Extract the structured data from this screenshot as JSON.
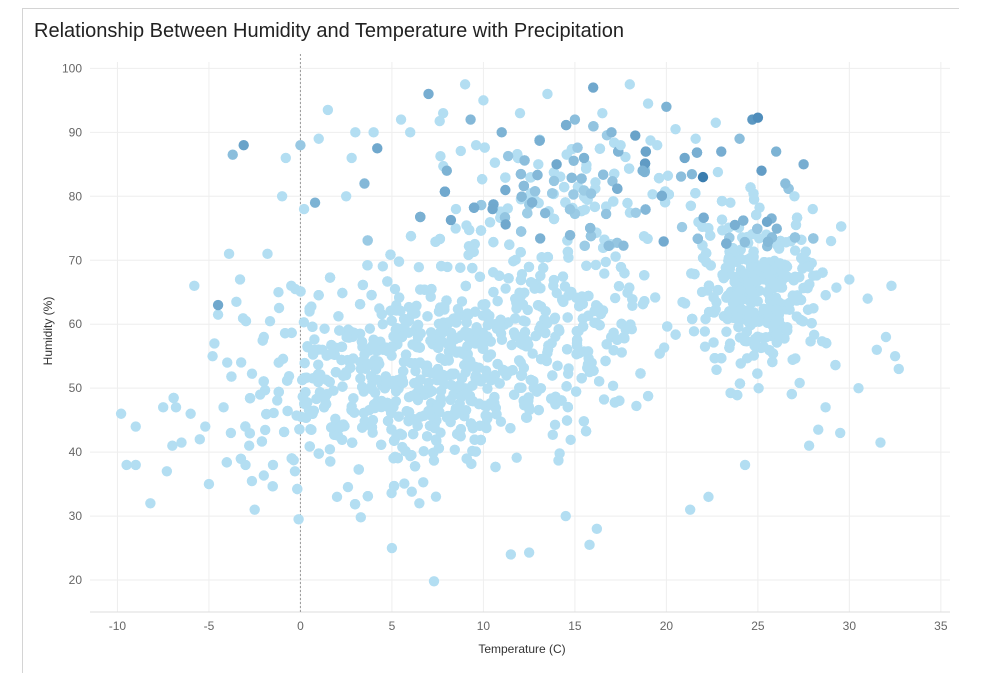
{
  "chart_data": {
    "type": "scatter",
    "title": "Relationship Between Humidity and Temperature with Precipitation",
    "xlabel": "Temperature (C)",
    "ylabel": "Humidity (%)",
    "xlim": [
      -11.5,
      35.5
    ],
    "ylim": [
      15,
      101
    ],
    "x_ticks": [
      -10,
      -5,
      0,
      5,
      10,
      15,
      20,
      25,
      30,
      35
    ],
    "y_ticks": [
      20,
      30,
      40,
      50,
      60,
      70,
      80,
      90,
      100
    ],
    "grid": true,
    "reference_line": {
      "x": 0,
      "style": "dotted"
    },
    "color_encoding": "Precipitation",
    "color_range": [
      "#b3def2",
      "#2d72a8"
    ],
    "points": [
      {
        "x": -9.8,
        "y": 46.0
      },
      {
        "x": -9.5,
        "y": 38.0
      },
      {
        "x": -9.0,
        "y": 44.0
      },
      {
        "x": -9.0,
        "y": 38.0
      },
      {
        "x": -8.2,
        "y": 32.0
      },
      {
        "x": -7.5,
        "y": 47.0
      },
      {
        "x": -7.3,
        "y": 37.0
      },
      {
        "x": -7.0,
        "y": 41.0
      },
      {
        "x": -6.8,
        "y": 47.0
      },
      {
        "x": -6.5,
        "y": 41.5
      },
      {
        "x": -6.0,
        "y": 46.0
      },
      {
        "x": -5.8,
        "y": 66.0
      },
      {
        "x": -5.5,
        "y": 42.0
      },
      {
        "x": -5.2,
        "y": 44.0
      },
      {
        "x": -5.0,
        "y": 35.0
      },
      {
        "x": -4.8,
        "y": 55.0
      },
      {
        "x": -4.7,
        "y": 57.0
      },
      {
        "x": -4.5,
        "y": 63.0,
        "p": 0.5
      },
      {
        "x": -4.5,
        "y": 61.5
      },
      {
        "x": -4.2,
        "y": 47.0
      },
      {
        "x": -4.0,
        "y": 54.0
      },
      {
        "x": -3.9,
        "y": 71.0
      },
      {
        "x": -3.8,
        "y": 43.0
      },
      {
        "x": -3.7,
        "y": 86.5,
        "p": 0.3
      },
      {
        "x": -3.5,
        "y": 63.5
      },
      {
        "x": -3.3,
        "y": 67.0
      },
      {
        "x": -3.1,
        "y": 88.0,
        "p": 0.55
      },
      {
        "x": -3.0,
        "y": 38.0
      },
      {
        "x": -2.8,
        "y": 41.0
      },
      {
        "x": -2.5,
        "y": 31.0
      },
      {
        "x": -2.2,
        "y": 49.0
      },
      {
        "x": -2.0,
        "y": 58.0
      },
      {
        "x": -1.8,
        "y": 71.0
      },
      {
        "x": -1.5,
        "y": 38.0
      },
      {
        "x": -1.2,
        "y": 65.0
      },
      {
        "x": -1.0,
        "y": 80.0
      },
      {
        "x": -0.8,
        "y": 86.0
      },
      {
        "x": -0.5,
        "y": 66.0
      },
      {
        "x": -0.3,
        "y": 37.0
      },
      {
        "x": -0.1,
        "y": 29.5
      },
      {
        "x": 0.0,
        "y": 88.0,
        "p": 0.2
      },
      {
        "x": 0.2,
        "y": 78.0
      },
      {
        "x": 0.5,
        "y": 62.0
      },
      {
        "x": 0.8,
        "y": 79.0,
        "p": 0.4
      },
      {
        "x": 1.0,
        "y": 89.0
      },
      {
        "x": 1.2,
        "y": 56.0
      },
      {
        "x": 1.5,
        "y": 93.5
      },
      {
        "x": 2.0,
        "y": 33.0
      },
      {
        "x": 2.5,
        "y": 80.0
      },
      {
        "x": 2.8,
        "y": 86.0
      },
      {
        "x": 3.0,
        "y": 90.0
      },
      {
        "x": 3.3,
        "y": 29.8
      },
      {
        "x": 3.5,
        "y": 82.0,
        "p": 0.35
      },
      {
        "x": 4.0,
        "y": 90.0
      },
      {
        "x": 4.2,
        "y": 87.5,
        "p": 0.5
      },
      {
        "x": 4.5,
        "y": 60.0
      },
      {
        "x": 5.0,
        "y": 25.0
      },
      {
        "x": 5.5,
        "y": 92.0
      },
      {
        "x": 6.0,
        "y": 90.0
      },
      {
        "x": 6.5,
        "y": 32.0
      },
      {
        "x": 7.0,
        "y": 96.0,
        "p": 0.45
      },
      {
        "x": 7.3,
        "y": 19.8
      },
      {
        "x": 7.8,
        "y": 93.0
      },
      {
        "x": 8.0,
        "y": 84.0,
        "p": 0.4
      },
      {
        "x": 8.5,
        "y": 78.0
      },
      {
        "x": 9.0,
        "y": 97.5
      },
      {
        "x": 9.3,
        "y": 92.0,
        "p": 0.35
      },
      {
        "x": 9.6,
        "y": 88.0
      },
      {
        "x": 10.0,
        "y": 95.0
      },
      {
        "x": 10.5,
        "y": 78.0,
        "p": 0.5
      },
      {
        "x": 11.0,
        "y": 90.0,
        "p": 0.4
      },
      {
        "x": 11.5,
        "y": 24.0
      },
      {
        "x": 12.0,
        "y": 93.0
      },
      {
        "x": 12.5,
        "y": 24.3
      },
      {
        "x": 13.0,
        "y": 85.0
      },
      {
        "x": 13.5,
        "y": 96.0
      },
      {
        "x": 14.0,
        "y": 85.0,
        "p": 0.5
      },
      {
        "x": 14.5,
        "y": 30.0
      },
      {
        "x": 15.0,
        "y": 92.0,
        "p": 0.3
      },
      {
        "x": 15.5,
        "y": 86.0,
        "p": 0.4
      },
      {
        "x": 15.8,
        "y": 25.5
      },
      {
        "x": 16.0,
        "y": 97.0,
        "p": 0.5
      },
      {
        "x": 16.2,
        "y": 28.0
      },
      {
        "x": 16.5,
        "y": 93.0
      },
      {
        "x": 17.0,
        "y": 90.0,
        "p": 0.35
      },
      {
        "x": 17.5,
        "y": 88.0
      },
      {
        "x": 18.0,
        "y": 97.5
      },
      {
        "x": 18.3,
        "y": 89.5,
        "p": 0.55
      },
      {
        "x": 18.7,
        "y": 84.0,
        "p": 0.4
      },
      {
        "x": 19.0,
        "y": 94.5
      },
      {
        "x": 19.5,
        "y": 88.0
      },
      {
        "x": 20.0,
        "y": 94.0,
        "p": 0.4
      },
      {
        "x": 20.5,
        "y": 90.5
      },
      {
        "x": 21.0,
        "y": 86.0,
        "p": 0.5
      },
      {
        "x": 21.3,
        "y": 31.0
      },
      {
        "x": 21.6,
        "y": 89.0
      },
      {
        "x": 22.0,
        "y": 83.0,
        "p": 0.9
      },
      {
        "x": 22.3,
        "y": 33.0
      },
      {
        "x": 22.7,
        "y": 91.5
      },
      {
        "x": 23.0,
        "y": 87.0,
        "p": 0.45
      },
      {
        "x": 23.5,
        "y": 79.0
      },
      {
        "x": 24.0,
        "y": 89.0,
        "p": 0.3
      },
      {
        "x": 24.3,
        "y": 38.0
      },
      {
        "x": 24.7,
        "y": 92.0,
        "p": 0.65
      },
      {
        "x": 25.0,
        "y": 92.3,
        "p": 0.75
      },
      {
        "x": 25.2,
        "y": 84.0,
        "p": 0.6
      },
      {
        "x": 25.5,
        "y": 76.0,
        "p": 0.5
      },
      {
        "x": 26.0,
        "y": 87.0,
        "p": 0.4
      },
      {
        "x": 26.5,
        "y": 82.0,
        "p": 0.3
      },
      {
        "x": 27.0,
        "y": 80.0
      },
      {
        "x": 27.5,
        "y": 85.0,
        "p": 0.45
      },
      {
        "x": 27.8,
        "y": 41.0
      },
      {
        "x": 28.0,
        "y": 78.0
      },
      {
        "x": 28.3,
        "y": 43.5
      },
      {
        "x": 28.7,
        "y": 47.0
      },
      {
        "x": 29.0,
        "y": 73.0
      },
      {
        "x": 29.5,
        "y": 43.0
      },
      {
        "x": 30.0,
        "y": 67.0
      },
      {
        "x": 30.5,
        "y": 50.0
      },
      {
        "x": 31.0,
        "y": 64.0
      },
      {
        "x": 31.5,
        "y": 56.0
      },
      {
        "x": 31.7,
        "y": 41.5
      },
      {
        "x": 32.0,
        "y": 58.0
      },
      {
        "x": 32.3,
        "y": 66.0
      },
      {
        "x": 32.5,
        "y": 55.0
      },
      {
        "x": 32.7,
        "y": 53.0
      }
    ],
    "cloud_seed": 1337,
    "cloud_count": 2300
  }
}
